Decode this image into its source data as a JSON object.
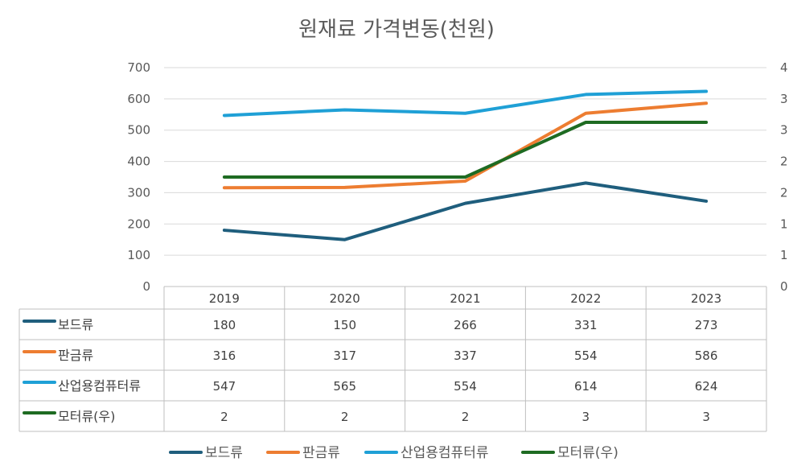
{
  "chart_data": {
    "type": "line",
    "title": "원재료 가격변동(천원)",
    "categories": [
      "2019",
      "2020",
      "2021",
      "2022",
      "2023"
    ],
    "left_axis": {
      "ylim": [
        0,
        700
      ],
      "ticks": [
        "0",
        "100",
        "200",
        "300",
        "400",
        "500",
        "600",
        "700"
      ]
    },
    "right_axis": {
      "ylim": [
        0,
        4
      ],
      "ticks": [
        "0",
        "1",
        "1",
        "2",
        "2",
        "3",
        "3",
        "4"
      ]
    },
    "series": [
      {
        "name": "보드류",
        "values": [
          180,
          150,
          266,
          331,
          273
        ],
        "axis": "left",
        "color": "#1f5e7d"
      },
      {
        "name": "판금류",
        "values": [
          316,
          317,
          337,
          554,
          586
        ],
        "axis": "left",
        "color": "#ed7d31"
      },
      {
        "name": "산업용컴퓨터류",
        "values": [
          547,
          565,
          554,
          614,
          624
        ],
        "axis": "left",
        "color": "#1fa0d6"
      },
      {
        "name": "모터류(우)",
        "values": [
          2,
          2,
          2,
          3,
          3
        ],
        "axis": "right",
        "color": "#1e6b22"
      }
    ],
    "table": {
      "rows": [
        {
          "label": "보드류",
          "cells": [
            "180",
            "150",
            "266",
            "331",
            "273"
          ]
        },
        {
          "label": "판금류",
          "cells": [
            "316",
            "317",
            "337",
            "554",
            "586"
          ]
        },
        {
          "label": "산업용컴퓨터류",
          "cells": [
            "547",
            "565",
            "554",
            "614",
            "624"
          ]
        },
        {
          "label": "모터류(우)",
          "cells": [
            "2",
            "2",
            "2",
            "3",
            "3"
          ]
        }
      ]
    },
    "legend": [
      "보드류",
      "판금류",
      "산업용컴퓨터류",
      "모터류(우)"
    ],
    "legend_position": "bottom",
    "grid": true
  }
}
